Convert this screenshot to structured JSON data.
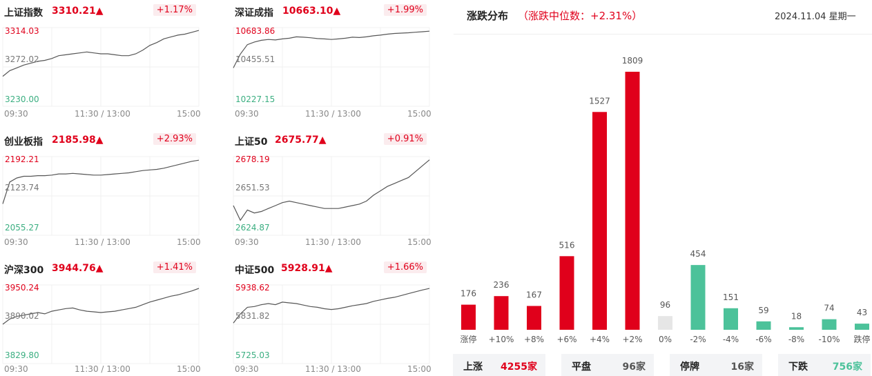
{
  "indices": [
    {
      "name": "上证指数",
      "price": "3310.21▲",
      "pct": "+1.17%",
      "high": "3314.03",
      "mid": "3272.02",
      "low": "3230.00",
      "times": [
        "09:30",
        "11:30 / 13:00",
        "15:00"
      ],
      "series": [
        3262,
        3268,
        3271,
        3274,
        3276,
        3278,
        3279,
        3281,
        3284,
        3285,
        3286,
        3287,
        3288,
        3287,
        3286,
        3286,
        3285,
        3284,
        3284,
        3286,
        3290,
        3295,
        3298,
        3302,
        3304,
        3306,
        3307,
        3309,
        3311
      ]
    },
    {
      "name": "深证成指",
      "price": "10663.10▲",
      "pct": "+1.99%",
      "high": "10683.86",
      "mid": "10455.51",
      "low": "10227.15",
      "times": [
        "09:30",
        "11:30 / 13:00",
        "15:00"
      ],
      "series": [
        10450,
        10530,
        10585,
        10600,
        10610,
        10615,
        10612,
        10618,
        10622,
        10630,
        10628,
        10625,
        10620,
        10618,
        10615,
        10618,
        10622,
        10628,
        10626,
        10630,
        10636,
        10640,
        10646,
        10650,
        10652,
        10654,
        10657,
        10660,
        10663
      ]
    },
    {
      "name": "创业板指",
      "price": "2185.98▲",
      "pct": "+2.93%",
      "high": "2192.21",
      "mid": "2123.74",
      "low": "2055.27",
      "times": [
        "09:30",
        "11:30 / 13:00",
        "15:00"
      ],
      "series": [
        2110,
        2148,
        2155,
        2158,
        2158,
        2159,
        2159,
        2160,
        2162,
        2162,
        2163,
        2162,
        2161,
        2160,
        2160,
        2161,
        2162,
        2163,
        2164,
        2166,
        2168,
        2169,
        2170,
        2172,
        2175,
        2178,
        2181,
        2184,
        2186
      ]
    },
    {
      "name": "上证50",
      "price": "2675.77▲",
      "pct": "+0.91%",
      "high": "2678.19",
      "mid": "2651.53",
      "low": "2624.87",
      "times": [
        "09:30",
        "11:30 / 13:00",
        "15:00"
      ],
      "series": [
        2645,
        2635,
        2642,
        2640,
        2641,
        2643,
        2645,
        2647,
        2648,
        2647,
        2646,
        2645,
        2644,
        2643,
        2643,
        2643,
        2644,
        2645,
        2646,
        2648,
        2652,
        2655,
        2658,
        2660,
        2662,
        2664,
        2668,
        2672,
        2676
      ]
    },
    {
      "name": "沪深300",
      "price": "3944.76▲",
      "pct": "+1.41%",
      "high": "3950.24",
      "mid": "3890.02",
      "low": "3829.80",
      "times": [
        "09:30",
        "11:30 / 13:00",
        "15:00"
      ],
      "series": [
        3890,
        3898,
        3902,
        3904,
        3906,
        3908,
        3906,
        3910,
        3912,
        3914,
        3915,
        3912,
        3910,
        3909,
        3908,
        3909,
        3910,
        3912,
        3914,
        3916,
        3920,
        3924,
        3927,
        3930,
        3933,
        3935,
        3938,
        3941,
        3945
      ]
    },
    {
      "name": "中证500",
      "price": "5928.91▲",
      "pct": "+1.66%",
      "high": "5938.62",
      "mid": "5831.82",
      "low": "5725.03",
      "times": [
        "09:30",
        "11:30 / 13:00",
        "15:00"
      ],
      "series": [
        5835,
        5860,
        5878,
        5880,
        5885,
        5888,
        5885,
        5892,
        5890,
        5888,
        5884,
        5880,
        5878,
        5874,
        5872,
        5874,
        5878,
        5882,
        5885,
        5888,
        5894,
        5898,
        5902,
        5905,
        5910,
        5915,
        5920,
        5925,
        5929
      ]
    }
  ],
  "distribution": {
    "title": "涨跌分布",
    "subtitle": "（涨跌中位数：+2.31%）",
    "date": "2024.11.04 星期一"
  },
  "chart_data": {
    "type": "bar",
    "categories": [
      "涨停",
      "+10%",
      "+8%",
      "+6%",
      "+4%",
      "+2%",
      "0%",
      "-2%",
      "-4%",
      "-6%",
      "-8%",
      "-10%",
      "跌停"
    ],
    "values": [
      176,
      236,
      167,
      516,
      1527,
      1809,
      96,
      454,
      151,
      59,
      18,
      74,
      43
    ],
    "value_labels": [
      "176",
      "236",
      "167",
      "516",
      "1527",
      "1809",
      "96",
      "454",
      "151",
      "59",
      "18",
      "74",
      "43"
    ],
    "ylim": [
      0,
      1809
    ],
    "colors": {
      "up": "#e0001b",
      "flat": "#e6e6e6",
      "down": "#4cc29a"
    },
    "bar_color_groups": [
      "up",
      "up",
      "up",
      "up",
      "up",
      "up",
      "flat",
      "down",
      "down",
      "down",
      "down",
      "down",
      "down"
    ]
  },
  "summary": [
    {
      "label": "上涨",
      "value": "4255家",
      "color": "#e0001b"
    },
    {
      "label": "平盘",
      "value": "96家",
      "color": "#555555"
    },
    {
      "label": "停牌",
      "value": "16家",
      "color": "#555555"
    },
    {
      "label": "下跌",
      "value": "756家",
      "color": "#4cc29a"
    }
  ]
}
